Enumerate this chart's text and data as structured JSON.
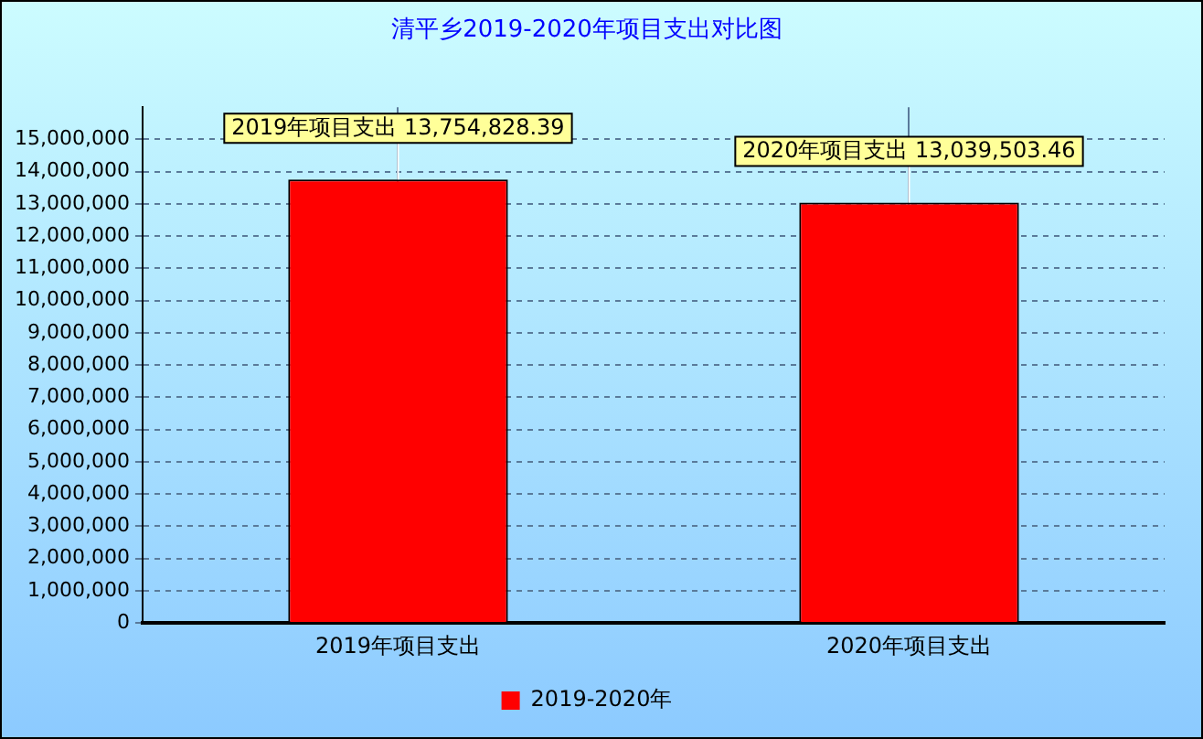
{
  "chart_data": {
    "type": "bar",
    "title": "清平乡2019-2020年项目支出对比图",
    "categories": [
      "2019年项目支出",
      "2020年项目支出"
    ],
    "series": [
      {
        "name": "2019-2020年",
        "color": "#ff0000",
        "values": [
          13754828.39,
          13039503.46
        ]
      }
    ],
    "ylim": [
      0,
      16000000
    ],
    "yticks": [
      0,
      {
        "value": 1000000,
        "label": "1,000,000"
      },
      {
        "value": 2000000,
        "label": "2,000,000"
      },
      {
        "value": 3000000,
        "label": "3,000,000"
      },
      {
        "value": 4000000,
        "label": "4,000,000"
      },
      {
        "value": 5000000,
        "label": "5,000,000"
      },
      {
        "value": 6000000,
        "label": "6,000,000"
      },
      {
        "value": 7000000,
        "label": "7,000,000"
      },
      {
        "value": 8000000,
        "label": "8,000,000"
      },
      {
        "value": 9000000,
        "label": "9,000,000"
      },
      {
        "value": 10000000,
        "label": "10,000,000"
      },
      {
        "value": 11000000,
        "label": "11,000,000"
      },
      {
        "value": 12000000,
        "label": "12,000,000"
      },
      {
        "value": 13000000,
        "label": "13,000,000"
      },
      {
        "value": 14000000,
        "label": "14,000,000"
      },
      {
        "value": 15000000,
        "label": "15,000,000"
      }
    ],
    "annotations": [
      {
        "text": "2019年项目支出 13,754,828.39",
        "x": "2019年项目支出",
        "y": 13754828.39
      },
      {
        "text": "2020年项目支出 13,039,503.46",
        "x": "2020年项目支出",
        "y": 13039503.46
      }
    ],
    "grid": true,
    "legend": "bottom"
  }
}
